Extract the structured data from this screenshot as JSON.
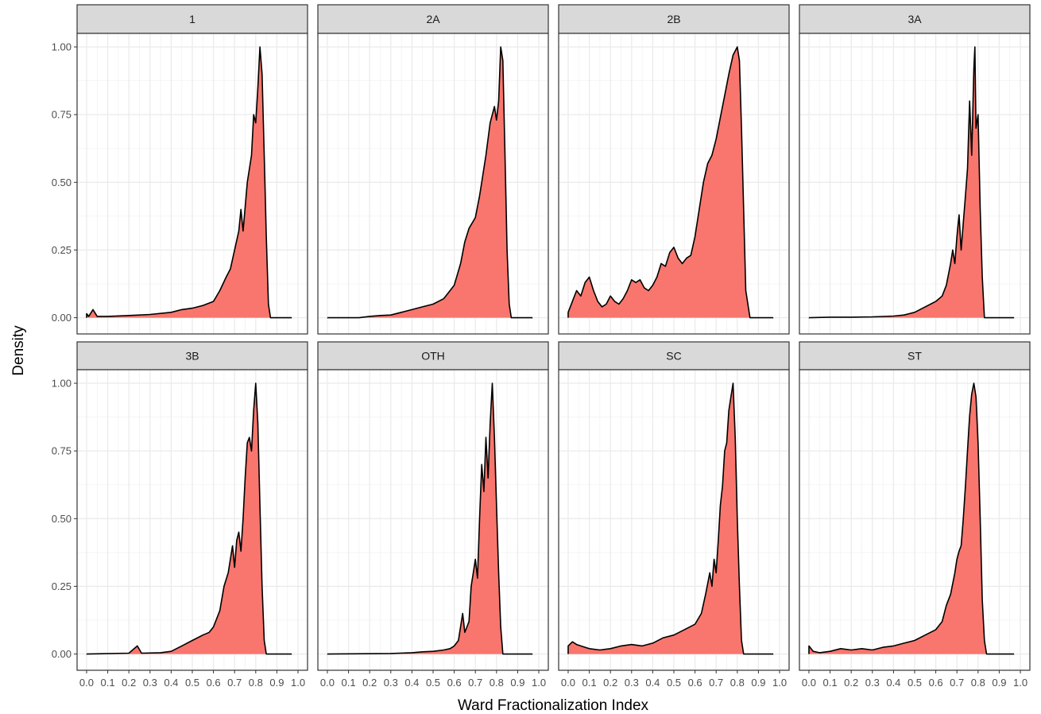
{
  "chart_data": {
    "type": "area",
    "subtype": "faceted density",
    "xlabel": "Ward Fractionalization Index",
    "ylabel": "Density",
    "xlim": [
      0.0,
      1.0
    ],
    "ylim": [
      0.0,
      1.0
    ],
    "x_ticks": [
      "0.0",
      "0.1",
      "0.2",
      "0.3",
      "0.4",
      "0.5",
      "0.6",
      "0.7",
      "0.8",
      "0.9",
      "1.0"
    ],
    "y_ticks": [
      "0.00",
      "0.25",
      "0.50",
      "0.75",
      "1.00"
    ],
    "grid": true,
    "legend": "none",
    "fill_color": "#F8766D",
    "line_color": "#000000",
    "strip_fill": "#d9d9d9",
    "facets": [
      {
        "label": "1",
        "points": [
          [
            0.0,
            0.015
          ],
          [
            0.01,
            0.005
          ],
          [
            0.03,
            0.03
          ],
          [
            0.05,
            0.005
          ],
          [
            0.1,
            0.005
          ],
          [
            0.2,
            0.008
          ],
          [
            0.3,
            0.012
          ],
          [
            0.4,
            0.02
          ],
          [
            0.45,
            0.03
          ],
          [
            0.5,
            0.035
          ],
          [
            0.55,
            0.045
          ],
          [
            0.6,
            0.06
          ],
          [
            0.63,
            0.1
          ],
          [
            0.66,
            0.15
          ],
          [
            0.68,
            0.18
          ],
          [
            0.7,
            0.25
          ],
          [
            0.72,
            0.32
          ],
          [
            0.73,
            0.4
          ],
          [
            0.74,
            0.32
          ],
          [
            0.76,
            0.5
          ],
          [
            0.78,
            0.6
          ],
          [
            0.79,
            0.75
          ],
          [
            0.8,
            0.72
          ],
          [
            0.81,
            0.85
          ],
          [
            0.82,
            1.0
          ],
          [
            0.83,
            0.9
          ],
          [
            0.84,
            0.6
          ],
          [
            0.85,
            0.3
          ],
          [
            0.86,
            0.05
          ],
          [
            0.87,
            0.0
          ],
          [
            0.97,
            0.0
          ]
        ]
      },
      {
        "label": "2A",
        "points": [
          [
            0.0,
            0.0
          ],
          [
            0.15,
            0.0
          ],
          [
            0.2,
            0.005
          ],
          [
            0.25,
            0.008
          ],
          [
            0.3,
            0.01
          ],
          [
            0.35,
            0.02
          ],
          [
            0.4,
            0.03
          ],
          [
            0.45,
            0.04
          ],
          [
            0.5,
            0.05
          ],
          [
            0.55,
            0.07
          ],
          [
            0.6,
            0.12
          ],
          [
            0.63,
            0.2
          ],
          [
            0.65,
            0.28
          ],
          [
            0.67,
            0.33
          ],
          [
            0.7,
            0.37
          ],
          [
            0.72,
            0.45
          ],
          [
            0.73,
            0.5
          ],
          [
            0.75,
            0.6
          ],
          [
            0.77,
            0.72
          ],
          [
            0.79,
            0.78
          ],
          [
            0.8,
            0.73
          ],
          [
            0.81,
            0.8
          ],
          [
            0.82,
            1.0
          ],
          [
            0.83,
            0.95
          ],
          [
            0.84,
            0.6
          ],
          [
            0.85,
            0.25
          ],
          [
            0.86,
            0.05
          ],
          [
            0.87,
            0.0
          ],
          [
            0.97,
            0.0
          ]
        ]
      },
      {
        "label": "2B",
        "points": [
          [
            0.0,
            0.02
          ],
          [
            0.02,
            0.06
          ],
          [
            0.04,
            0.1
          ],
          [
            0.06,
            0.08
          ],
          [
            0.08,
            0.13
          ],
          [
            0.1,
            0.15
          ],
          [
            0.12,
            0.1
          ],
          [
            0.14,
            0.06
          ],
          [
            0.16,
            0.04
          ],
          [
            0.18,
            0.05
          ],
          [
            0.2,
            0.08
          ],
          [
            0.22,
            0.06
          ],
          [
            0.24,
            0.05
          ],
          [
            0.26,
            0.07
          ],
          [
            0.28,
            0.1
          ],
          [
            0.3,
            0.14
          ],
          [
            0.32,
            0.13
          ],
          [
            0.34,
            0.14
          ],
          [
            0.36,
            0.11
          ],
          [
            0.38,
            0.1
          ],
          [
            0.4,
            0.12
          ],
          [
            0.42,
            0.15
          ],
          [
            0.44,
            0.2
          ],
          [
            0.46,
            0.19
          ],
          [
            0.48,
            0.24
          ],
          [
            0.5,
            0.26
          ],
          [
            0.52,
            0.22
          ],
          [
            0.54,
            0.2
          ],
          [
            0.56,
            0.22
          ],
          [
            0.58,
            0.23
          ],
          [
            0.6,
            0.3
          ],
          [
            0.62,
            0.4
          ],
          [
            0.64,
            0.5
          ],
          [
            0.66,
            0.57
          ],
          [
            0.68,
            0.6
          ],
          [
            0.7,
            0.66
          ],
          [
            0.72,
            0.74
          ],
          [
            0.74,
            0.82
          ],
          [
            0.76,
            0.9
          ],
          [
            0.78,
            0.97
          ],
          [
            0.8,
            1.0
          ],
          [
            0.81,
            0.95
          ],
          [
            0.82,
            0.7
          ],
          [
            0.83,
            0.4
          ],
          [
            0.84,
            0.1
          ],
          [
            0.86,
            0.0
          ],
          [
            0.97,
            0.0
          ]
        ]
      },
      {
        "label": "3A",
        "points": [
          [
            0.0,
            0.0
          ],
          [
            0.1,
            0.002
          ],
          [
            0.2,
            0.002
          ],
          [
            0.3,
            0.003
          ],
          [
            0.4,
            0.006
          ],
          [
            0.45,
            0.01
          ],
          [
            0.5,
            0.02
          ],
          [
            0.55,
            0.04
          ],
          [
            0.6,
            0.06
          ],
          [
            0.63,
            0.08
          ],
          [
            0.65,
            0.12
          ],
          [
            0.67,
            0.2
          ],
          [
            0.68,
            0.25
          ],
          [
            0.69,
            0.2
          ],
          [
            0.7,
            0.3
          ],
          [
            0.71,
            0.38
          ],
          [
            0.72,
            0.25
          ],
          [
            0.74,
            0.45
          ],
          [
            0.75,
            0.55
          ],
          [
            0.76,
            0.8
          ],
          [
            0.77,
            0.6
          ],
          [
            0.78,
            0.92
          ],
          [
            0.785,
            1.0
          ],
          [
            0.79,
            0.7
          ],
          [
            0.8,
            0.75
          ],
          [
            0.81,
            0.4
          ],
          [
            0.82,
            0.15
          ],
          [
            0.83,
            0.0
          ],
          [
            0.97,
            0.0
          ]
        ]
      },
      {
        "label": "3B",
        "points": [
          [
            0.0,
            0.0
          ],
          [
            0.2,
            0.003
          ],
          [
            0.24,
            0.03
          ],
          [
            0.26,
            0.003
          ],
          [
            0.35,
            0.005
          ],
          [
            0.4,
            0.01
          ],
          [
            0.45,
            0.03
          ],
          [
            0.5,
            0.05
          ],
          [
            0.55,
            0.07
          ],
          [
            0.58,
            0.08
          ],
          [
            0.6,
            0.1
          ],
          [
            0.63,
            0.16
          ],
          [
            0.65,
            0.25
          ],
          [
            0.67,
            0.3
          ],
          [
            0.69,
            0.4
          ],
          [
            0.7,
            0.32
          ],
          [
            0.71,
            0.42
          ],
          [
            0.72,
            0.45
          ],
          [
            0.73,
            0.38
          ],
          [
            0.74,
            0.5
          ],
          [
            0.75,
            0.65
          ],
          [
            0.76,
            0.78
          ],
          [
            0.77,
            0.8
          ],
          [
            0.78,
            0.75
          ],
          [
            0.79,
            0.9
          ],
          [
            0.8,
            1.0
          ],
          [
            0.81,
            0.85
          ],
          [
            0.82,
            0.55
          ],
          [
            0.83,
            0.25
          ],
          [
            0.84,
            0.05
          ],
          [
            0.85,
            0.0
          ],
          [
            0.97,
            0.0
          ]
        ]
      },
      {
        "label": "OTH",
        "points": [
          [
            0.0,
            0.0
          ],
          [
            0.3,
            0.002
          ],
          [
            0.4,
            0.005
          ],
          [
            0.45,
            0.008
          ],
          [
            0.5,
            0.01
          ],
          [
            0.55,
            0.015
          ],
          [
            0.58,
            0.02
          ],
          [
            0.6,
            0.03
          ],
          [
            0.62,
            0.05
          ],
          [
            0.64,
            0.15
          ],
          [
            0.65,
            0.08
          ],
          [
            0.66,
            0.1
          ],
          [
            0.67,
            0.12
          ],
          [
            0.68,
            0.25
          ],
          [
            0.69,
            0.3
          ],
          [
            0.7,
            0.35
          ],
          [
            0.71,
            0.28
          ],
          [
            0.72,
            0.5
          ],
          [
            0.73,
            0.7
          ],
          [
            0.74,
            0.6
          ],
          [
            0.75,
            0.8
          ],
          [
            0.76,
            0.65
          ],
          [
            0.77,
            0.85
          ],
          [
            0.78,
            1.0
          ],
          [
            0.79,
            0.8
          ],
          [
            0.8,
            0.55
          ],
          [
            0.81,
            0.3
          ],
          [
            0.82,
            0.1
          ],
          [
            0.83,
            0.0
          ],
          [
            0.97,
            0.0
          ]
        ]
      },
      {
        "label": "SC",
        "points": [
          [
            0.0,
            0.03
          ],
          [
            0.02,
            0.045
          ],
          [
            0.04,
            0.035
          ],
          [
            0.06,
            0.03
          ],
          [
            0.08,
            0.025
          ],
          [
            0.1,
            0.02
          ],
          [
            0.15,
            0.015
          ],
          [
            0.2,
            0.02
          ],
          [
            0.25,
            0.03
          ],
          [
            0.3,
            0.035
          ],
          [
            0.35,
            0.03
          ],
          [
            0.4,
            0.04
          ],
          [
            0.45,
            0.06
          ],
          [
            0.5,
            0.07
          ],
          [
            0.55,
            0.09
          ],
          [
            0.6,
            0.11
          ],
          [
            0.63,
            0.15
          ],
          [
            0.65,
            0.22
          ],
          [
            0.67,
            0.3
          ],
          [
            0.68,
            0.25
          ],
          [
            0.69,
            0.35
          ],
          [
            0.7,
            0.3
          ],
          [
            0.71,
            0.42
          ],
          [
            0.72,
            0.55
          ],
          [
            0.73,
            0.62
          ],
          [
            0.74,
            0.75
          ],
          [
            0.75,
            0.78
          ],
          [
            0.76,
            0.9
          ],
          [
            0.77,
            0.95
          ],
          [
            0.78,
            1.0
          ],
          [
            0.79,
            0.8
          ],
          [
            0.8,
            0.5
          ],
          [
            0.81,
            0.25
          ],
          [
            0.82,
            0.05
          ],
          [
            0.83,
            0.0
          ],
          [
            0.97,
            0.0
          ]
        ]
      },
      {
        "label": "ST",
        "points": [
          [
            0.0,
            0.03
          ],
          [
            0.02,
            0.01
          ],
          [
            0.05,
            0.005
          ],
          [
            0.1,
            0.01
          ],
          [
            0.15,
            0.02
          ],
          [
            0.2,
            0.015
          ],
          [
            0.25,
            0.02
          ],
          [
            0.3,
            0.015
          ],
          [
            0.35,
            0.025
          ],
          [
            0.4,
            0.03
          ],
          [
            0.45,
            0.04
          ],
          [
            0.5,
            0.05
          ],
          [
            0.55,
            0.07
          ],
          [
            0.6,
            0.09
          ],
          [
            0.63,
            0.12
          ],
          [
            0.65,
            0.18
          ],
          [
            0.67,
            0.22
          ],
          [
            0.69,
            0.3
          ],
          [
            0.7,
            0.35
          ],
          [
            0.71,
            0.38
          ],
          [
            0.72,
            0.4
          ],
          [
            0.73,
            0.5
          ],
          [
            0.74,
            0.62
          ],
          [
            0.75,
            0.75
          ],
          [
            0.76,
            0.88
          ],
          [
            0.77,
            0.96
          ],
          [
            0.78,
            1.0
          ],
          [
            0.79,
            0.95
          ],
          [
            0.8,
            0.78
          ],
          [
            0.81,
            0.5
          ],
          [
            0.82,
            0.2
          ],
          [
            0.83,
            0.05
          ],
          [
            0.84,
            0.0
          ],
          [
            0.97,
            0.0
          ]
        ]
      }
    ]
  }
}
